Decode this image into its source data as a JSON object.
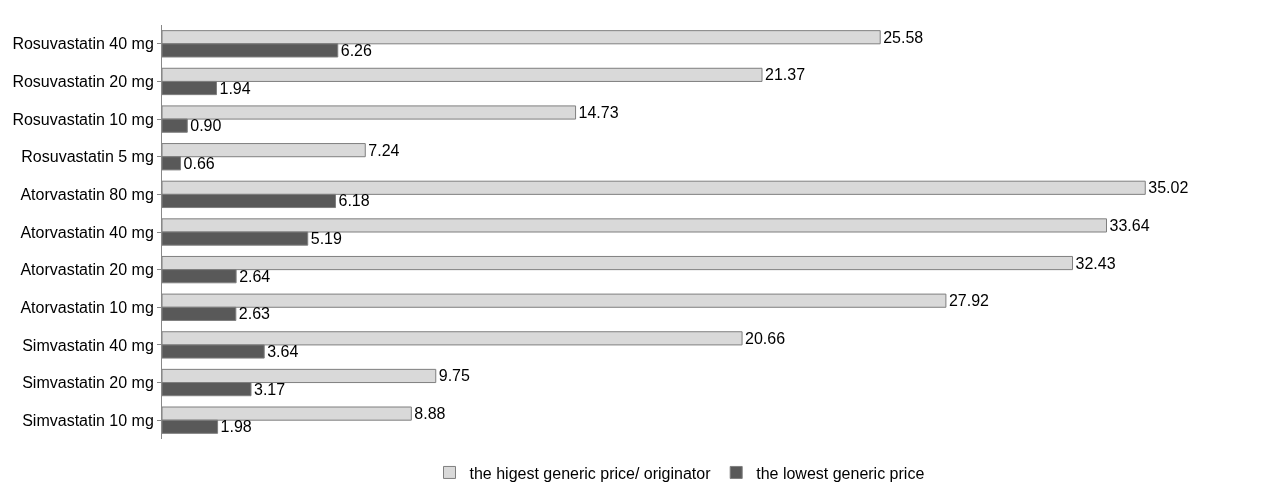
{
  "chart_data": {
    "type": "bar",
    "orientation": "horizontal",
    "categories": [
      "Rosuvastatin 40 mg",
      "Rosuvastatin 20 mg",
      "Rosuvastatin 10 mg",
      "Rosuvastatin 5 mg",
      "Atorvastatin 80 mg",
      "Atorvastatin 40 mg",
      "Atorvastatin 20 mg",
      "Atorvastatin 10 mg",
      "Simvastatin 40 mg",
      "Simvastatin 20 mg",
      "Simvastatin 10 mg"
    ],
    "series": [
      {
        "name": "the higest generic price/ originator",
        "color": "#d9d9d9",
        "values": [
          25.58,
          21.37,
          14.73,
          7.24,
          35.02,
          33.64,
          32.43,
          27.92,
          20.66,
          9.75,
          8.88
        ],
        "value_labels": [
          "25.58",
          "21.37",
          "14.73",
          "7.24",
          "35.02",
          "33.64",
          "32.43",
          "27.92",
          "20.66",
          "9.75",
          "8.88"
        ]
      },
      {
        "name": "the lowest generic price",
        "color": "#595959",
        "values": [
          6.26,
          1.94,
          0.9,
          0.66,
          6.18,
          5.19,
          2.64,
          2.63,
          3.64,
          3.17,
          1.98
        ],
        "value_labels": [
          "6.26",
          "1.94",
          "0.90",
          "0.66",
          "6.18",
          "5.19",
          "2.64",
          "2.63",
          "3.64",
          "3.17",
          "1.98"
        ]
      }
    ],
    "legend": "bottom"
  }
}
